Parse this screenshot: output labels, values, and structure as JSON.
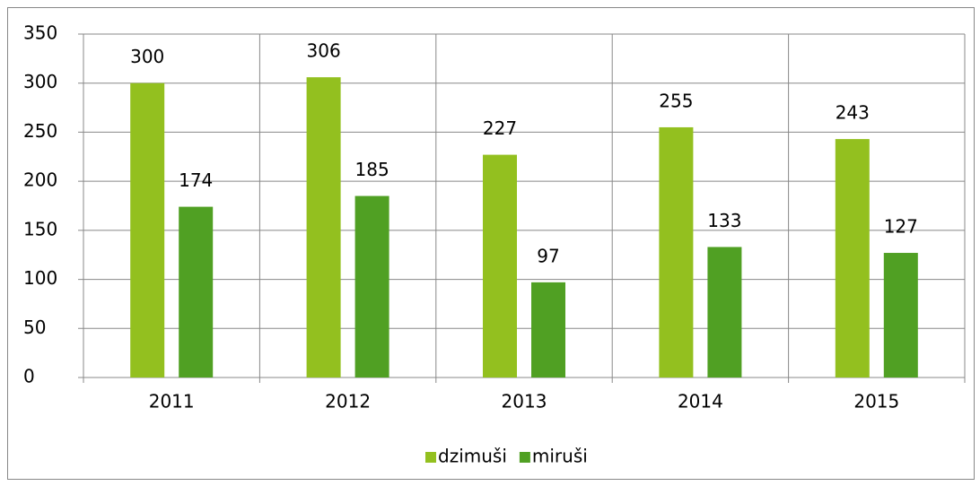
{
  "chart_data": {
    "type": "bar",
    "categories": [
      "2011",
      "2012",
      "2013",
      "2014",
      "2015"
    ],
    "series": [
      {
        "name": "dzimuši",
        "color": "#93c01f",
        "values": [
          300,
          306,
          227,
          255,
          243
        ]
      },
      {
        "name": "miruši",
        "color": "#50a023",
        "values": [
          174,
          185,
          97,
          133,
          127
        ]
      }
    ],
    "ylim": [
      0,
      350
    ],
    "yticks": [
      0,
      50,
      100,
      150,
      200,
      250,
      300,
      350
    ],
    "grid": true,
    "legend": "bottom"
  }
}
